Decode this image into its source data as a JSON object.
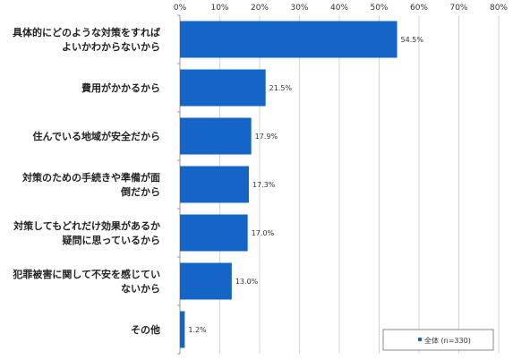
{
  "chart_data": {
    "type": "bar",
    "orientation": "horizontal",
    "categories": [
      [
        "具体的にどのような対策をすれば",
        "よいかわからないから"
      ],
      [
        "費用がかかるから"
      ],
      [
        "住んでいる地域が安全だから"
      ],
      [
        "対策のための手続きや準備が面",
        "倒だから"
      ],
      [
        "対策してもどれだけ効果があるか",
        "疑問に思っているから"
      ],
      [
        "犯罪被害に関して不安を感じてい",
        "ないから"
      ],
      [
        "その他"
      ]
    ],
    "series": [
      {
        "name": "全体 (n=330)",
        "values": [
          54.5,
          21.5,
          17.9,
          17.3,
          17.0,
          13.0,
          1.2
        ],
        "value_labels": [
          "54.5%",
          "21.5%",
          "17.9%",
          "17.3%",
          "17.0%",
          "13.0%",
          "1.2%"
        ],
        "color": "#1565c8"
      }
    ],
    "xlim": [
      0,
      80
    ],
    "x_ticks": [
      "0%",
      "10%",
      "20%",
      "30%",
      "40%",
      "50%",
      "60%",
      "70%",
      "80%"
    ],
    "grid": true,
    "legend_position": "bottom-right"
  }
}
